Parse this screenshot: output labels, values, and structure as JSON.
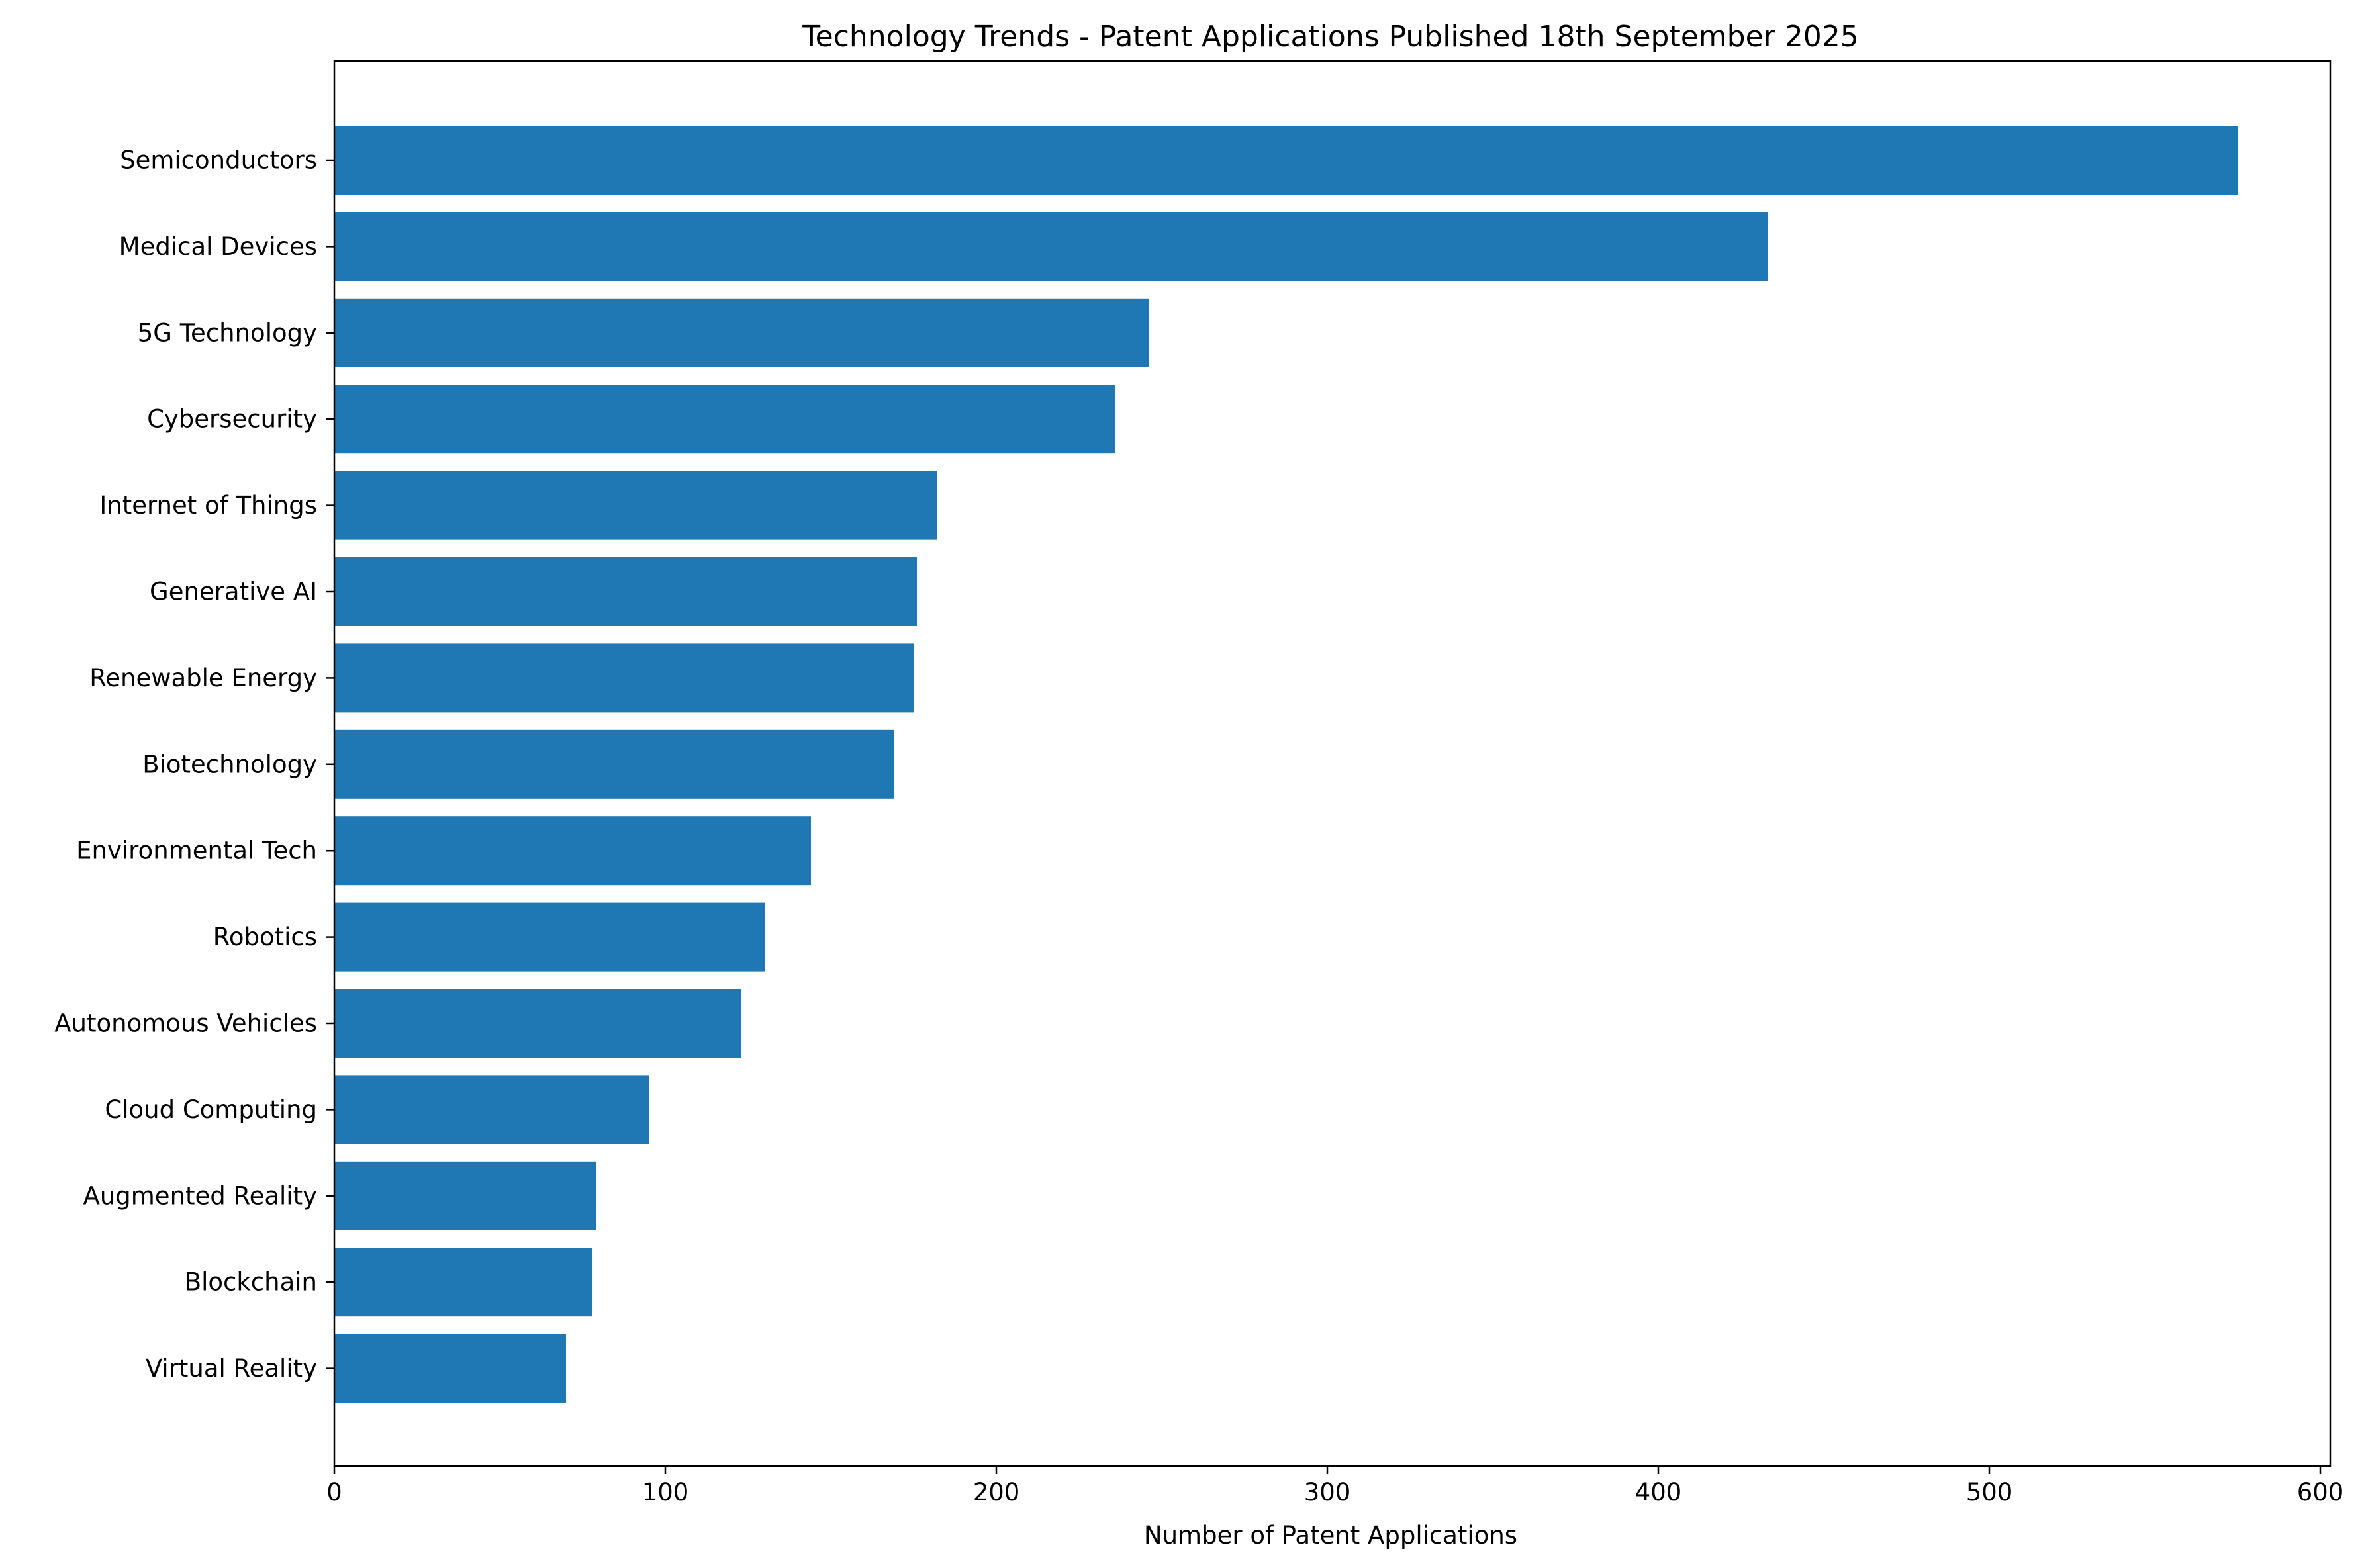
{
  "chart_data": {
    "type": "bar",
    "orientation": "horizontal",
    "title": "Technology Trends - Patent Applications Published 18th September 2025",
    "xlabel": "Number of Patent Applications",
    "ylabel": "",
    "xlim": [
      0,
      603
    ],
    "xticks": [
      0,
      100,
      200,
      300,
      400,
      500,
      600
    ],
    "xtick_labels": [
      "0",
      "100",
      "200",
      "300",
      "400",
      "500",
      "600"
    ],
    "grid": false,
    "legend": "none",
    "bar_color": "#1f77b4",
    "categories": [
      "Semiconductors",
      "Medical Devices",
      "5G Technology",
      "Cybersecurity",
      "Internet of Things",
      "Generative AI",
      "Renewable Energy",
      "Biotechnology",
      "Environmental Tech",
      "Robotics",
      "Autonomous Vehicles",
      "Cloud Computing",
      "Augmented Reality",
      "Blockchain",
      "Virtual Reality"
    ],
    "values": [
      575,
      433,
      246,
      236,
      182,
      176,
      175,
      169,
      144,
      130,
      123,
      95,
      79,
      78,
      70
    ]
  }
}
